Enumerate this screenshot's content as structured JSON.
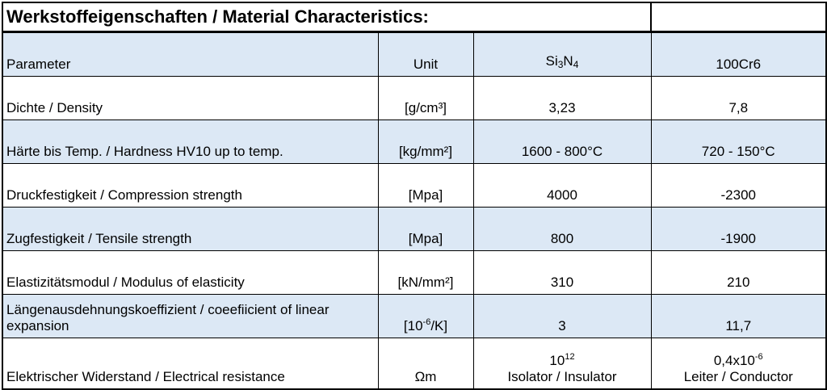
{
  "title": "Werkstoffeigenschaften / Material Characteristics:",
  "headers": {
    "parameter": "Parameter",
    "unit": "Unit",
    "si3n4_base": "Si",
    "si3n4_sub1": "3",
    "si3n4_mid": "N",
    "si3n4_sub2": "4",
    "steel": "100Cr6"
  },
  "rows": [
    {
      "parameter": "Dichte / Density",
      "unit": "[g/cm³]",
      "si3n4": "3,23",
      "steel": "7,8"
    },
    {
      "parameter": "Härte bis Temp. / Hardness HV10 up to temp.",
      "unit": "[kg/mm²]",
      "si3n4": "1600 - 800°C",
      "steel": "720 - 150°C"
    },
    {
      "parameter": "Druckfestigkeit / Compression strength",
      "unit": "[Mpa]",
      "si3n4": "4000",
      "steel": "-2300"
    },
    {
      "parameter": "Zugfestigkeit / Tensile strength",
      "unit": "[Mpa]",
      "si3n4": "800",
      "steel": "-1900"
    },
    {
      "parameter": "Elastizitätsmodul / Modulus of elasticity",
      "unit": "[kN/mm²]",
      "si3n4": "310",
      "steel": "210"
    },
    {
      "parameter": "Längenausdehnungskoeffizient / coeefiicient of linear expansion",
      "unit_pre": "[10",
      "unit_sup": "-6",
      "unit_post": "/K]",
      "si3n4": "3",
      "steel": "11,7"
    },
    {
      "parameter": "Elektrischer Widerstand / Electrical resistance",
      "unit": "Ωm",
      "si3n4_base": "10",
      "si3n4_sup": "12",
      "si3n4_note": "Isolator / Insulator",
      "steel_base": "0,4x10",
      "steel_sup": "-6",
      "steel_note": "Leiter / Conductor"
    }
  ]
}
